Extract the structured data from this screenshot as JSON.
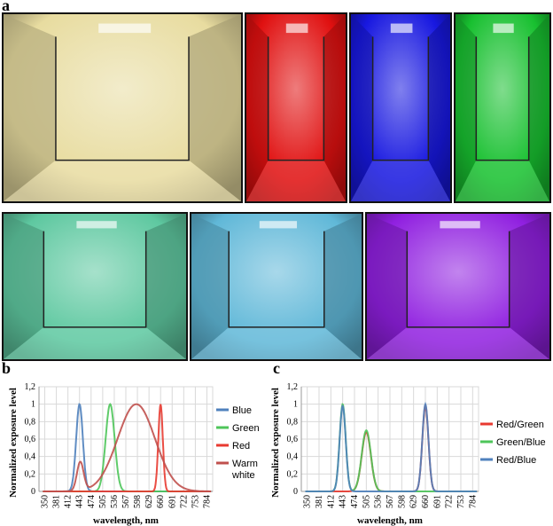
{
  "panels": {
    "a": "a",
    "b": "b",
    "c": "c"
  },
  "photos": [
    {
      "color": "#e8dca0"
    },
    {
      "color": "#e01010"
    },
    {
      "color": "#1818e0"
    },
    {
      "color": "#18c030"
    },
    {
      "color": "#5ec8a0"
    },
    {
      "color": "#60b8d8"
    },
    {
      "color": "#9020e0"
    }
  ],
  "chart_data": [
    {
      "type": "line",
      "panel": "b",
      "xlabel": "wavelength, nm",
      "ylabel": "Normalized exposure level",
      "xticks": [
        "350",
        "381",
        "412",
        "443",
        "474",
        "505",
        "536",
        "567",
        "598",
        "629",
        "660",
        "691",
        "722",
        "753",
        "784"
      ],
      "yticks": [
        "0",
        "0,2",
        "0,4",
        "0,6",
        "0,8",
        "1",
        "1,2"
      ],
      "xlim": [
        350,
        800
      ],
      "ylim": [
        0,
        1.2
      ],
      "legend_position": "right",
      "series": [
        {
          "name": "Blue",
          "color": "#4f81bd",
          "peaks": [
            {
              "center": 443,
              "sigma": 9,
              "amp": 1
            }
          ]
        },
        {
          "name": "Green",
          "color": "#4ec55a",
          "peaks": [
            {
              "center": 525,
              "sigma": 12,
              "amp": 1
            }
          ]
        },
        {
          "name": "Red",
          "color": "#e83a30",
          "peaks": [
            {
              "center": 660,
              "sigma": 6,
              "amp": 1
            }
          ]
        },
        {
          "name": "Warm white",
          "legend_lines": [
            "Warm",
            "white"
          ],
          "color": "#c0504d",
          "peaks": [
            {
              "center": 445,
              "sigma": 9,
              "amp": 0.33
            },
            {
              "center": 595,
              "sigma": 50,
              "amp": 1
            }
          ]
        }
      ]
    },
    {
      "type": "line",
      "panel": "c",
      "xlabel": "wavelength, nm",
      "ylabel": "Normalized exposure level",
      "xticks": [
        "350",
        "381",
        "412",
        "443",
        "474",
        "505",
        "536",
        "567",
        "598",
        "629",
        "660",
        "691",
        "722",
        "753",
        "784"
      ],
      "yticks": [
        "0",
        "0,2",
        "0,4",
        "0,6",
        "0,8",
        "1",
        "1,2"
      ],
      "xlim": [
        350,
        800
      ],
      "ylim": [
        0,
        1.2
      ],
      "legend_position": "right",
      "series": [
        {
          "name": "Red/Green",
          "color": "#e83a30",
          "peaks": [
            {
              "center": 505,
              "sigma": 12,
              "amp": 0.68
            },
            {
              "center": 660,
              "sigma": 8,
              "amp": 0.98
            }
          ]
        },
        {
          "name": "Green/Blue",
          "color": "#4ec55a",
          "peaks": [
            {
              "center": 443,
              "sigma": 8,
              "amp": 1
            },
            {
              "center": 505,
              "sigma": 12,
              "amp": 0.7
            }
          ]
        },
        {
          "name": "Red/Blue",
          "color": "#4f81bd",
          "peaks": [
            {
              "center": 443,
              "sigma": 8,
              "amp": 0.98
            },
            {
              "center": 660,
              "sigma": 8,
              "amp": 1
            }
          ]
        }
      ]
    }
  ]
}
